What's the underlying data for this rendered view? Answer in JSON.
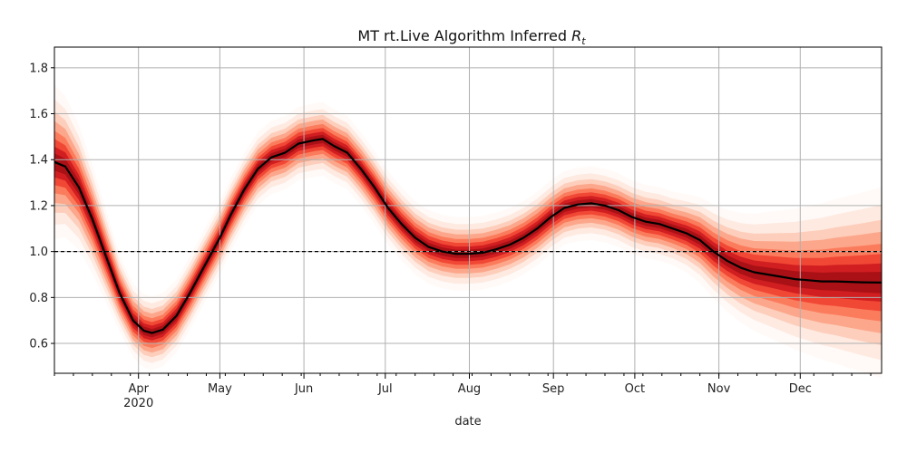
{
  "chart_data": {
    "type": "line",
    "title": "MT rt.Live Algorithm Inferred ",
    "title_math_symbol": "R",
    "title_math_subscript": "t",
    "xlabel": "date",
    "ylabel": "",
    "xlim": [
      "2020-03-01",
      "2020-12-31"
    ],
    "ylim": [
      0.47,
      1.89
    ],
    "grid": true,
    "reference_line": {
      "y": 1.0,
      "style": "dashed",
      "color": "#000000"
    },
    "month_ticks": [
      {
        "date": "2020-04-01",
        "label": "Apr",
        "sublabel": "2020"
      },
      {
        "date": "2020-05-01",
        "label": "May",
        "sublabel": ""
      },
      {
        "date": "2020-06-01",
        "label": "Jun",
        "sublabel": ""
      },
      {
        "date": "2020-07-01",
        "label": "Jul",
        "sublabel": ""
      },
      {
        "date": "2020-08-01",
        "label": "Aug",
        "sublabel": ""
      },
      {
        "date": "2020-09-01",
        "label": "Sep",
        "sublabel": ""
      },
      {
        "date": "2020-10-01",
        "label": "Oct",
        "sublabel": ""
      },
      {
        "date": "2020-11-01",
        "label": "Nov",
        "sublabel": ""
      },
      {
        "date": "2020-12-01",
        "label": "Dec",
        "sublabel": ""
      }
    ],
    "y_ticks": [
      0.6,
      0.8,
      1.0,
      1.2,
      1.4,
      1.6,
      1.8
    ],
    "y_tick_labels": [
      "0.6",
      "0.8",
      "1.0",
      "1.2",
      "1.4",
      "1.6",
      "1.8"
    ],
    "series": [
      {
        "color": "#000000",
        "points": [
          [
            "2020-03-01",
            1.39
          ],
          [
            "2020-03-05",
            1.37
          ],
          [
            "2020-03-10",
            1.28
          ],
          [
            "2020-03-15",
            1.14
          ],
          [
            "2020-03-20",
            0.98
          ],
          [
            "2020-03-25",
            0.82
          ],
          [
            "2020-03-30",
            0.7
          ],
          [
            "2020-04-03",
            0.655
          ],
          [
            "2020-04-06",
            0.645
          ],
          [
            "2020-04-10",
            0.66
          ],
          [
            "2020-04-15",
            0.72
          ],
          [
            "2020-04-20",
            0.82
          ],
          [
            "2020-04-25",
            0.93
          ],
          [
            "2020-05-01",
            1.06
          ],
          [
            "2020-05-05",
            1.16
          ],
          [
            "2020-05-10",
            1.27
          ],
          [
            "2020-05-15",
            1.36
          ],
          [
            "2020-05-20",
            1.41
          ],
          [
            "2020-05-25",
            1.43
          ],
          [
            "2020-05-30",
            1.47
          ],
          [
            "2020-06-05",
            1.485
          ],
          [
            "2020-06-08",
            1.49
          ],
          [
            "2020-06-12",
            1.46
          ],
          [
            "2020-06-17",
            1.43
          ],
          [
            "2020-06-22",
            1.36
          ],
          [
            "2020-06-27",
            1.28
          ],
          [
            "2020-07-02",
            1.19
          ],
          [
            "2020-07-07",
            1.12
          ],
          [
            "2020-07-12",
            1.06
          ],
          [
            "2020-07-17",
            1.02
          ],
          [
            "2020-07-22",
            1.0
          ],
          [
            "2020-07-27",
            0.99
          ],
          [
            "2020-08-01",
            0.99
          ],
          [
            "2020-08-06",
            0.995
          ],
          [
            "2020-08-11",
            1.01
          ],
          [
            "2020-08-16",
            1.03
          ],
          [
            "2020-08-21",
            1.06
          ],
          [
            "2020-08-26",
            1.1
          ],
          [
            "2020-08-31",
            1.15
          ],
          [
            "2020-09-05",
            1.19
          ],
          [
            "2020-09-10",
            1.205
          ],
          [
            "2020-09-15",
            1.21
          ],
          [
            "2020-09-20",
            1.2
          ],
          [
            "2020-09-25",
            1.18
          ],
          [
            "2020-09-30",
            1.15
          ],
          [
            "2020-10-05",
            1.13
          ],
          [
            "2020-10-10",
            1.12
          ],
          [
            "2020-10-15",
            1.1
          ],
          [
            "2020-10-20",
            1.08
          ],
          [
            "2020-10-25",
            1.05
          ],
          [
            "2020-10-30",
            1.0
          ],
          [
            "2020-11-04",
            0.96
          ],
          [
            "2020-11-09",
            0.93
          ],
          [
            "2020-11-14",
            0.91
          ],
          [
            "2020-11-19",
            0.9
          ],
          [
            "2020-11-24",
            0.89
          ],
          [
            "2020-11-29",
            0.88
          ],
          [
            "2020-12-04",
            0.875
          ],
          [
            "2020-12-09",
            0.87
          ],
          [
            "2020-12-14",
            0.87
          ],
          [
            "2020-12-19",
            0.868
          ],
          [
            "2020-12-24",
            0.866
          ],
          [
            "2020-12-31",
            0.865
          ]
        ]
      }
    ],
    "uncertainty_band": {
      "color_scale": "Reds",
      "colors": [
        "#fff5f0",
        "#fee0d2",
        "#fcbba1",
        "#fc9272",
        "#fb6a4a",
        "#ef3b2c",
        "#cb181d",
        "#a50f15"
      ]
    }
  }
}
